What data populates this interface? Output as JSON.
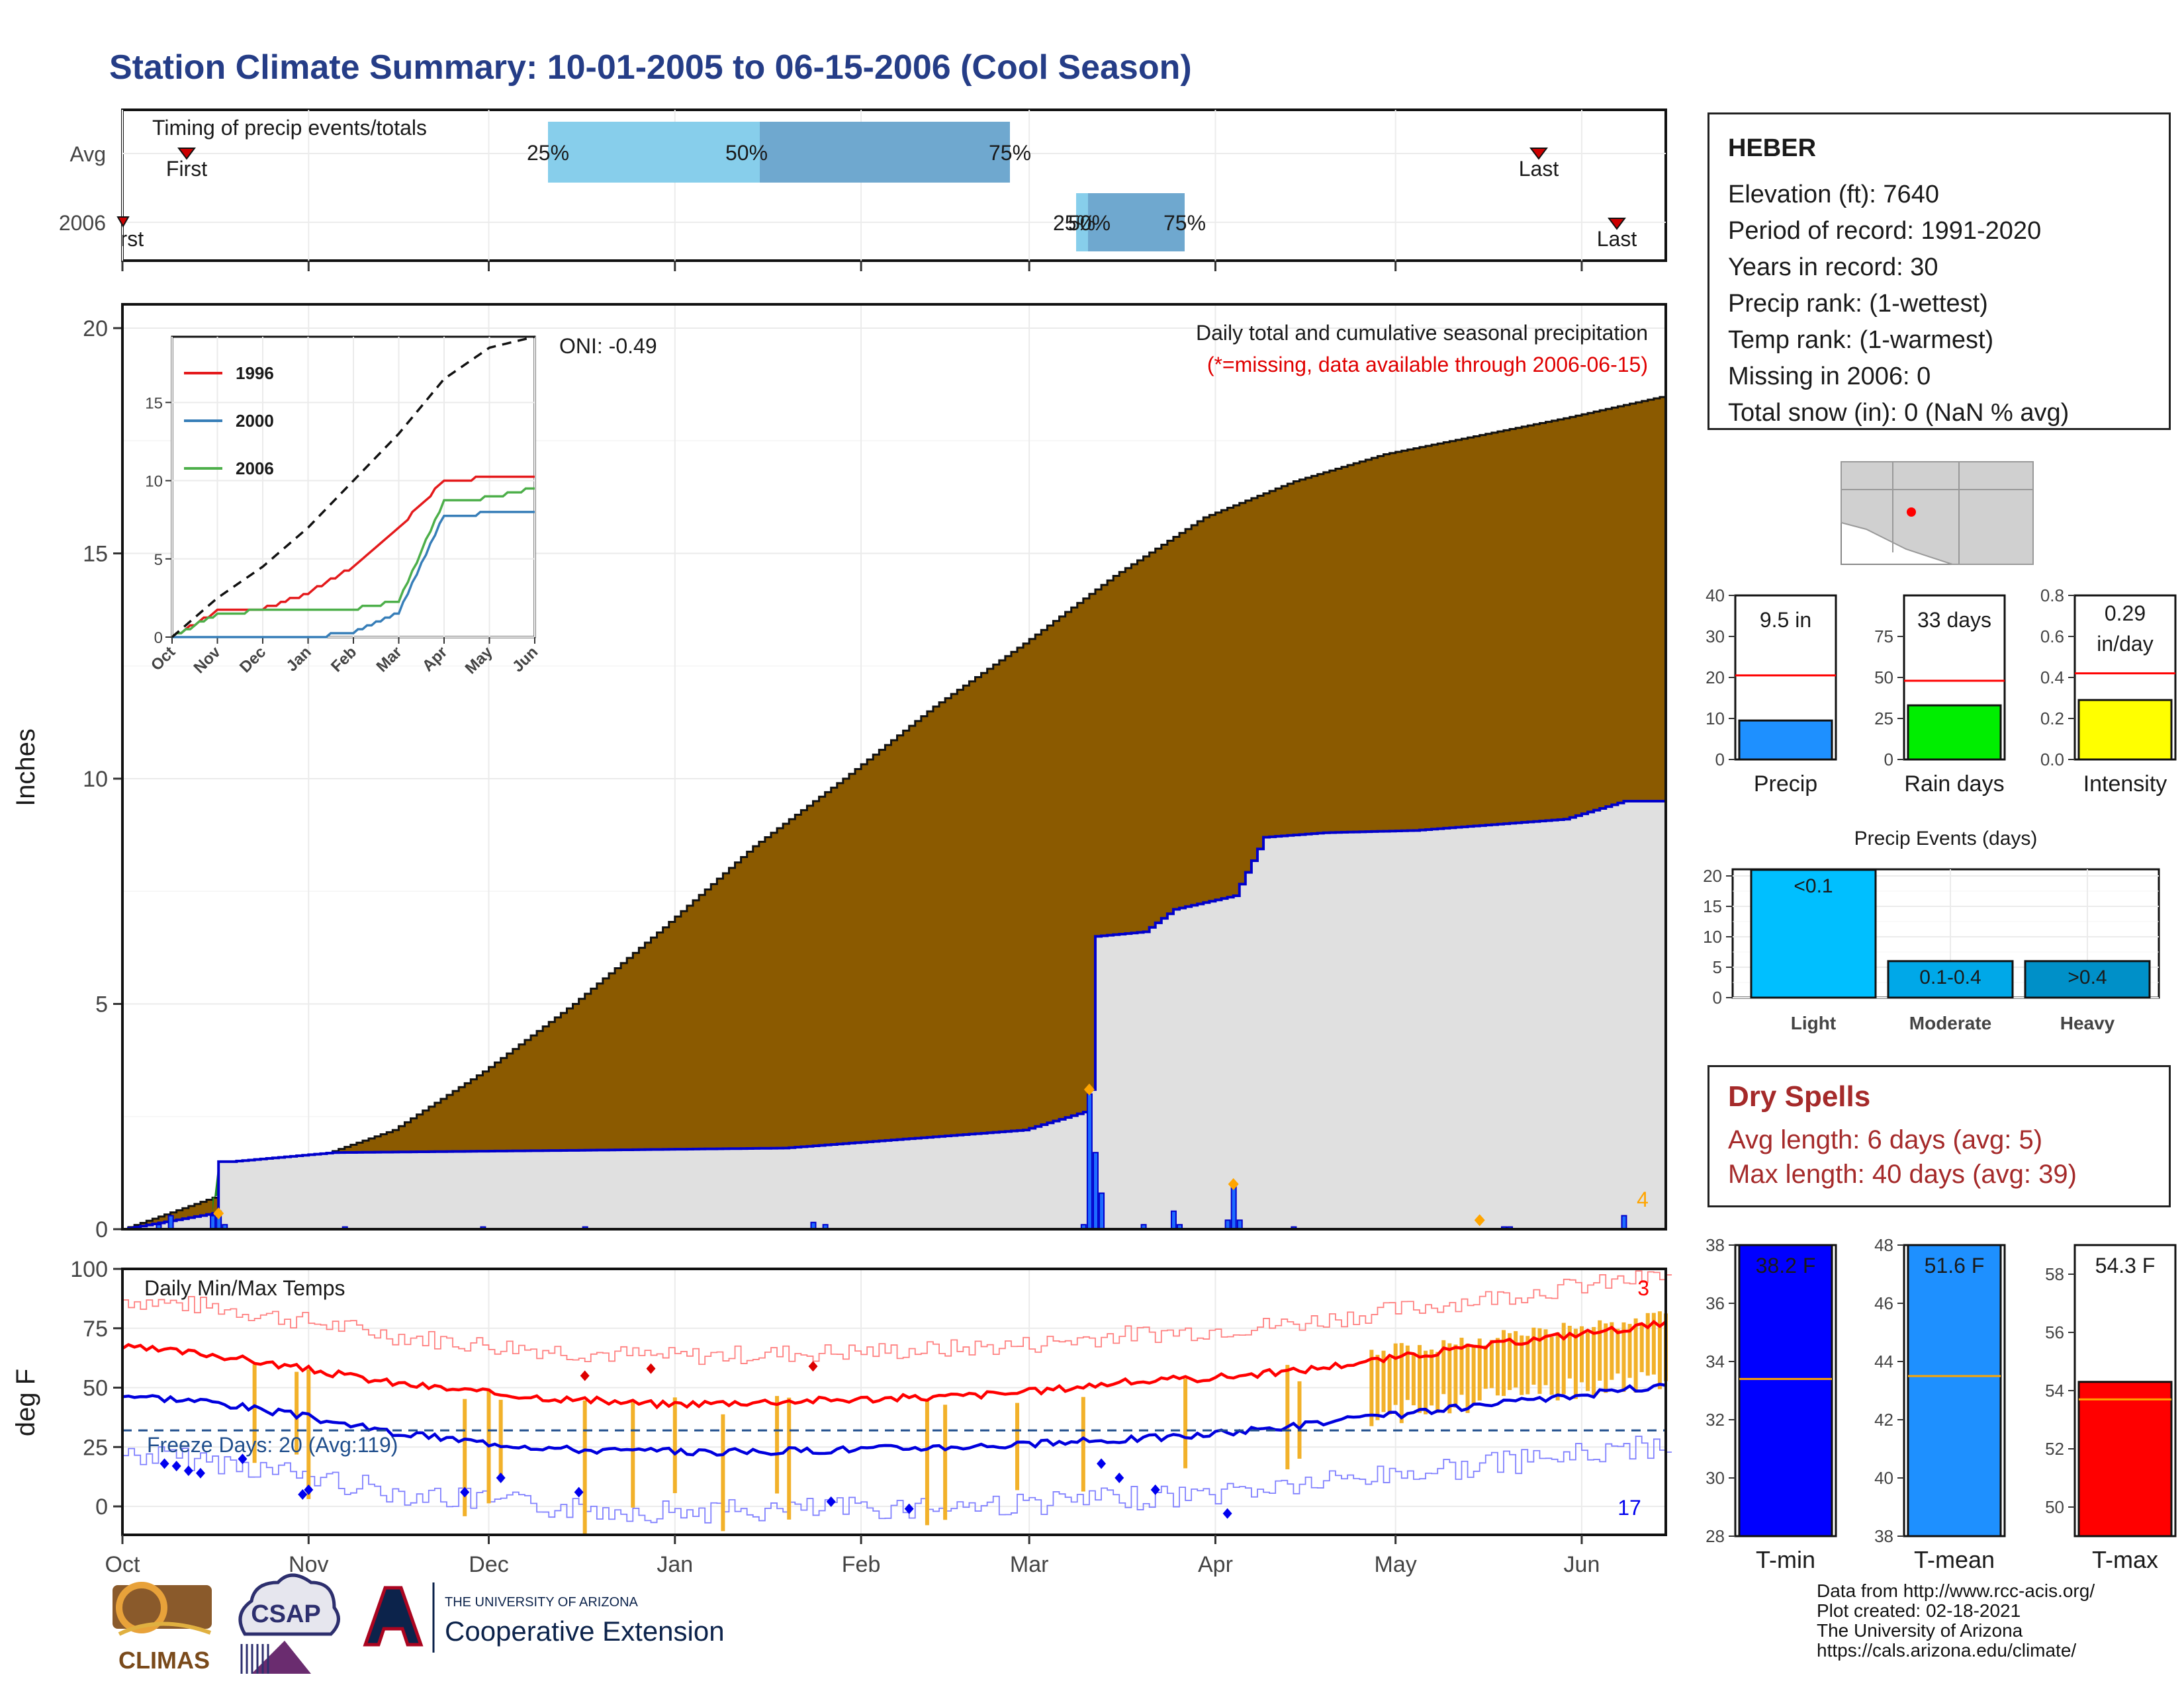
{
  "title": "Station Climate Summary: 10-01-2005 to 06-15-2006 (Cool Season)",
  "colors": {
    "title": "#253d87",
    "cumulative_avg_fill": "#8b5a00",
    "cumulative_obs_fill": "#e0e0e0",
    "obs_line": "#0000cc",
    "excess_fill": "#1f8a1f",
    "tmax_line": "#ff0000",
    "tmin_line": "#0000dd",
    "range_bar": "#f2b12a",
    "dry_spells_text": "#a52a2a"
  },
  "timing_panel": {
    "label": "Timing of precip events/totals",
    "rows": [
      "Avg",
      "2006"
    ],
    "avg": {
      "first_label": "First",
      "last_label": "Last",
      "q25": "25%",
      "q50": "50%",
      "q75": "75%"
    },
    "y2006": {
      "first_label": "First",
      "last_label": "Last",
      "q25": "25%",
      "q50": "50%",
      "q75": "75%"
    }
  },
  "main_panel": {
    "ylabel": "Inches",
    "legend_title": "Daily total and cumulative seasonal precipitation",
    "missing_note": "(*=missing, data available through 2006-06-15)",
    "oni": "ONI: -0.49",
    "count_label": "4"
  },
  "inset": {
    "series_names": [
      "1996",
      "2000",
      "2006"
    ],
    "series_colors": [
      "#e41a1c",
      "#377eb8",
      "#4daf4a"
    ],
    "yticks": [
      "0",
      "5",
      "10",
      "15"
    ],
    "xticks": [
      "Oct",
      "Nov",
      "Dec",
      "Jan",
      "Feb",
      "Mar",
      "Apr",
      "May",
      "Jun"
    ]
  },
  "temp_panel": {
    "ylabel": "deg F",
    "label": "Daily Min/Max Temps",
    "freeze": "Freeze Days: 20 (Avg:119)",
    "max_count": "3",
    "min_count": "17",
    "yticks": [
      "0",
      "25",
      "50",
      "75",
      "100"
    ]
  },
  "month_labels": [
    "Oct",
    "Nov",
    "Dec",
    "Jan",
    "Feb",
    "Mar",
    "Apr",
    "May",
    "Jun"
  ],
  "station": {
    "name": "HEBER",
    "lines": [
      "Elevation (ft): 7640",
      "Period of record: 1991-2020",
      "Years in record: 30",
      "Precip rank:  (1-wettest)",
      "Temp rank:  (1-warmest)",
      "Missing in 2006: 0",
      "Total snow (in): 0 (NaN % avg)"
    ]
  },
  "summary_bars": {
    "precip": {
      "label": "Precip",
      "value_text": "9.5 in"
    },
    "rain_days": {
      "label": "Rain days",
      "value_text": "33 days"
    },
    "intensity": {
      "label": "Intensity",
      "value_text_1": "0.29",
      "value_text_2": "in/day"
    }
  },
  "precip_events": {
    "title": "Precip Events (days)",
    "categories": [
      "Light",
      "Moderate",
      "Heavy"
    ],
    "bar_labels": [
      "<0.1",
      "0.1-0.4",
      ">0.4"
    ]
  },
  "dry_spells": {
    "title": "Dry Spells",
    "avg_line": "Avg length: 6 days (avg: 5)",
    "max_line": "Max length: 40 days (avg: 39)"
  },
  "temp_bars": {
    "tmin": {
      "label": "T-min",
      "value_text": "38.2 F"
    },
    "tmean": {
      "label": "T-mean",
      "value_text": "51.6 F"
    },
    "tmax": {
      "label": "T-max",
      "value_text": "54.3 F"
    }
  },
  "credits": [
    "Data from http://www.rcc-acis.org/",
    "Plot created: 02-18-2021",
    "The University of Arizona",
    "https://cals.arizona.edu/climate/"
  ],
  "logos": {
    "climas": "CLIMAS",
    "csap": "CSAP",
    "ua_small": "THE UNIVERSITY OF ARIZONA",
    "ua_large": "Cooperative Extension"
  },
  "chart_data": [
    {
      "type": "area",
      "name": "cumulative_precip",
      "ylabel": "Inches",
      "ylim": [
        0,
        20
      ],
      "x_unit": "day of season (0 = Oct 1)",
      "xlim": [
        0,
        257
      ],
      "average_cumulative": {
        "x": [
          0,
          15,
          30,
          45,
          60,
          75,
          90,
          105,
          120,
          135,
          150,
          165,
          180,
          195,
          210,
          225,
          240,
          257
        ],
        "y": [
          0,
          0.7,
          1.5,
          2.2,
          3.5,
          5.0,
          6.7,
          8.5,
          10.0,
          11.6,
          13.0,
          14.5,
          15.8,
          16.6,
          17.2,
          17.6,
          18.0,
          18.5
        ]
      },
      "observed_cumulative_2006": {
        "x": [
          0,
          15,
          16,
          18,
          35,
          75,
          110,
          150,
          160,
          161,
          162,
          170,
          175,
          185,
          190,
          200,
          215,
          240,
          250,
          257
        ],
        "y": [
          0,
          0.35,
          1.5,
          1.5,
          1.7,
          1.75,
          1.8,
          2.2,
          2.6,
          3.1,
          6.5,
          6.6,
          7.1,
          7.4,
          8.7,
          8.8,
          8.85,
          9.1,
          9.5,
          9.5
        ]
      },
      "daily_precip": {
        "x": [
          6,
          8,
          15,
          16,
          17,
          37,
          60,
          77,
          115,
          117,
          160,
          161,
          162,
          163,
          170,
          175,
          176,
          184,
          185,
          186,
          195,
          230,
          231,
          250
        ],
        "y": [
          0.1,
          0.3,
          0.3,
          0.4,
          0.1,
          0.05,
          0.05,
          0.05,
          0.15,
          0.1,
          0.1,
          3.0,
          1.7,
          0.8,
          0.1,
          0.4,
          0.1,
          0.2,
          0.95,
          0.2,
          0.05,
          0.05,
          0.05,
          0.3
        ]
      }
    },
    {
      "type": "line",
      "name": "inset_cumulative_years",
      "ylim": [
        0,
        19
      ],
      "categories": [
        "Oct",
        "Nov",
        "Dec",
        "Jan",
        "Feb",
        "Mar",
        "Apr",
        "May",
        "Jun"
      ],
      "series": [
        {
          "name": "1996",
          "values": [
            0,
            1.7,
            1.8,
            2.8,
            4.5,
            7.0,
            10.0,
            10.2,
            10.2
          ]
        },
        {
          "name": "2000",
          "values": [
            0,
            0,
            0,
            0,
            0.3,
            1.5,
            7.8,
            7.9,
            8.0
          ]
        },
        {
          "name": "2006",
          "values": [
            0,
            1.5,
            1.7,
            1.7,
            1.8,
            2.3,
            8.7,
            8.9,
            9.5
          ]
        },
        {
          "name": "average",
          "values": [
            0,
            2.5,
            4.5,
            7.0,
            10.0,
            13.0,
            16.5,
            18.5,
            19.2
          ]
        }
      ]
    },
    {
      "type": "line",
      "name": "daily_temps",
      "ylabel": "deg F",
      "ylim": [
        -10,
        100
      ],
      "x": [
        0,
        15,
        30,
        45,
        60,
        75,
        90,
        105,
        120,
        135,
        150,
        165,
        180,
        195,
        210,
        225,
        240,
        257
      ],
      "series": [
        {
          "name": "avg_tmax",
          "values": [
            67,
            64,
            58,
            52,
            48,
            45,
            43,
            44,
            45,
            46,
            48,
            52,
            54,
            57,
            62,
            67,
            72,
            77
          ]
        },
        {
          "name": "avg_tmin",
          "values": [
            47,
            44,
            38,
            31,
            27,
            24,
            23,
            23,
            24,
            25,
            26,
            28,
            30,
            34,
            38,
            42,
            46,
            51
          ]
        }
      ],
      "freeze_line": 32
    },
    {
      "type": "bar",
      "name": "precip_summary",
      "categories": [
        "Precip",
        "Rain days",
        "Intensity"
      ],
      "values": [
        9.5,
        33,
        0.29
      ],
      "averages": [
        20.5,
        48,
        0.42
      ],
      "ylims": [
        [
          0,
          40
        ],
        [
          0,
          100
        ],
        [
          0,
          0.8
        ]
      ]
    },
    {
      "type": "bar",
      "name": "precip_events_days",
      "categories": [
        "Light",
        "Moderate",
        "Heavy"
      ],
      "values": [
        21,
        6,
        6
      ],
      "ylim": [
        0,
        20
      ]
    },
    {
      "type": "bar",
      "name": "temperature_summary",
      "categories": [
        "T-min",
        "T-mean",
        "T-max"
      ],
      "values": [
        38.2,
        51.6,
        54.3
      ],
      "averages": [
        33.4,
        43.5,
        53.7
      ],
      "ylims": [
        [
          28,
          38
        ],
        [
          38,
          48
        ],
        [
          49,
          59
        ]
      ]
    }
  ]
}
